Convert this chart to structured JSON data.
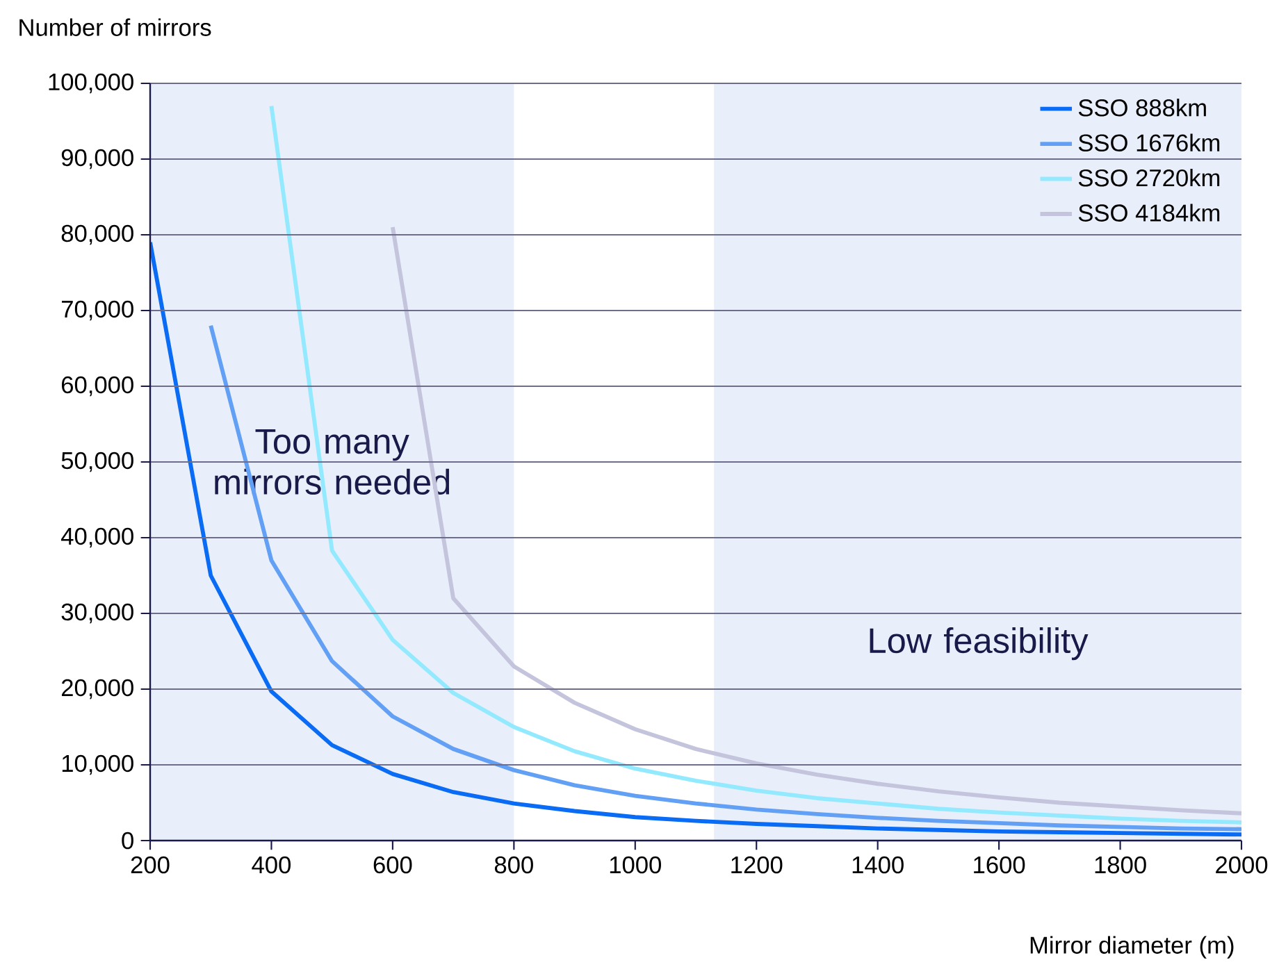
{
  "chart_data": {
    "type": "line",
    "xlabel": "Mirror diameter (m)",
    "ylabel": "Number of mirrors",
    "x": [
      200,
      300,
      400,
      500,
      600,
      700,
      800,
      900,
      1000,
      1100,
      1200,
      1300,
      1400,
      1500,
      1600,
      1700,
      1800,
      1900,
      2000
    ],
    "series": [
      {
        "name": "SSO 888km",
        "color": "#0a6cf5",
        "values": [
          79000,
          35000,
          19700,
          12600,
          8800,
          6400,
          4900,
          3900,
          3100,
          2600,
          2200,
          1900,
          1600,
          1400,
          1200,
          1100,
          1000,
          900,
          800
        ]
      },
      {
        "name": "SSO 1676km",
        "color": "#62a0f5",
        "values": [
          null,
          68000,
          37000,
          23700,
          16400,
          12100,
          9300,
          7300,
          5900,
          4900,
          4100,
          3500,
          3000,
          2600,
          2300,
          2000,
          1800,
          1600,
          1500
        ]
      },
      {
        "name": "SSO 2720km",
        "color": "#93eaff",
        "values": [
          null,
          null,
          97000,
          38300,
          26500,
          19500,
          15000,
          11800,
          9500,
          7900,
          6600,
          5600,
          4900,
          4200,
          3700,
          3300,
          2900,
          2600,
          2400
        ]
      },
      {
        "name": "SSO 4184km",
        "color": "#c4c4dc",
        "values": [
          null,
          null,
          null,
          null,
          81000,
          32000,
          23000,
          18200,
          14700,
          12100,
          10200,
          8700,
          7500,
          6500,
          5700,
          5000,
          4500,
          4000,
          3600
        ]
      }
    ],
    "xlim": [
      200,
      2000
    ],
    "ylim": [
      0,
      100000
    ],
    "xticks": [
      200,
      400,
      600,
      800,
      1000,
      1200,
      1400,
      1600,
      1800,
      2000
    ],
    "yticks": [
      {
        "value": 0,
        "label": "0"
      },
      {
        "value": 10000,
        "label": "10,000"
      },
      {
        "value": 20000,
        "label": "20,000"
      },
      {
        "value": 30000,
        "label": "30,000"
      },
      {
        "value": 40000,
        "label": "40,000"
      },
      {
        "value": 50000,
        "label": "50,000"
      },
      {
        "value": 60000,
        "label": "60,000"
      },
      {
        "value": 70000,
        "label": "70,000"
      },
      {
        "value": 80000,
        "label": "80,000"
      },
      {
        "value": 90000,
        "label": "90,000"
      },
      {
        "value": 100000,
        "label": "100,000"
      }
    ],
    "bands": [
      {
        "axis": "x",
        "from": 200,
        "to": 800,
        "label": "Too many mirrors needed",
        "color": "#e8eefa"
      },
      {
        "axis": "x",
        "from": 1130,
        "to": 2000,
        "label": "Low feasibility",
        "color": "#e8eefa"
      }
    ],
    "grid": "y",
    "legend": "top right",
    "marker": "none",
    "line_style": "solid"
  }
}
